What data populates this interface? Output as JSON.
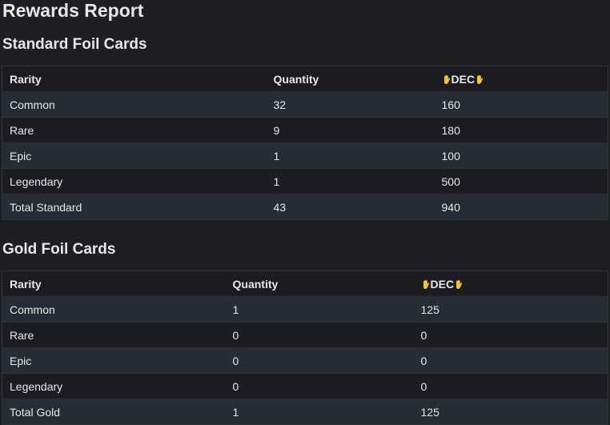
{
  "title": "Rewards Report",
  "sections": [
    {
      "heading": "Standard Foil Cards",
      "table": {
        "header": [
          "Rarity",
          "Quantity",
          "DEC"
        ],
        "rows": [
          [
            "Common",
            32,
            160
          ],
          [
            "Rare",
            9,
            180
          ],
          [
            "Epic",
            1,
            100
          ],
          [
            "Legendary",
            1,
            500
          ],
          [
            "Total Standard",
            43,
            940
          ]
        ]
      }
    },
    {
      "heading": "Gold Foil Cards",
      "table": {
        "header": [
          "Rarity",
          "Quantity",
          "DEC"
        ],
        "rows": [
          [
            "Common",
            1,
            125
          ],
          [
            "Rare",
            0,
            0
          ],
          [
            "Epic",
            0,
            0
          ],
          [
            "Legendary",
            0,
            0
          ],
          [
            "Total Gold",
            1,
            125
          ]
        ]
      }
    }
  ]
}
